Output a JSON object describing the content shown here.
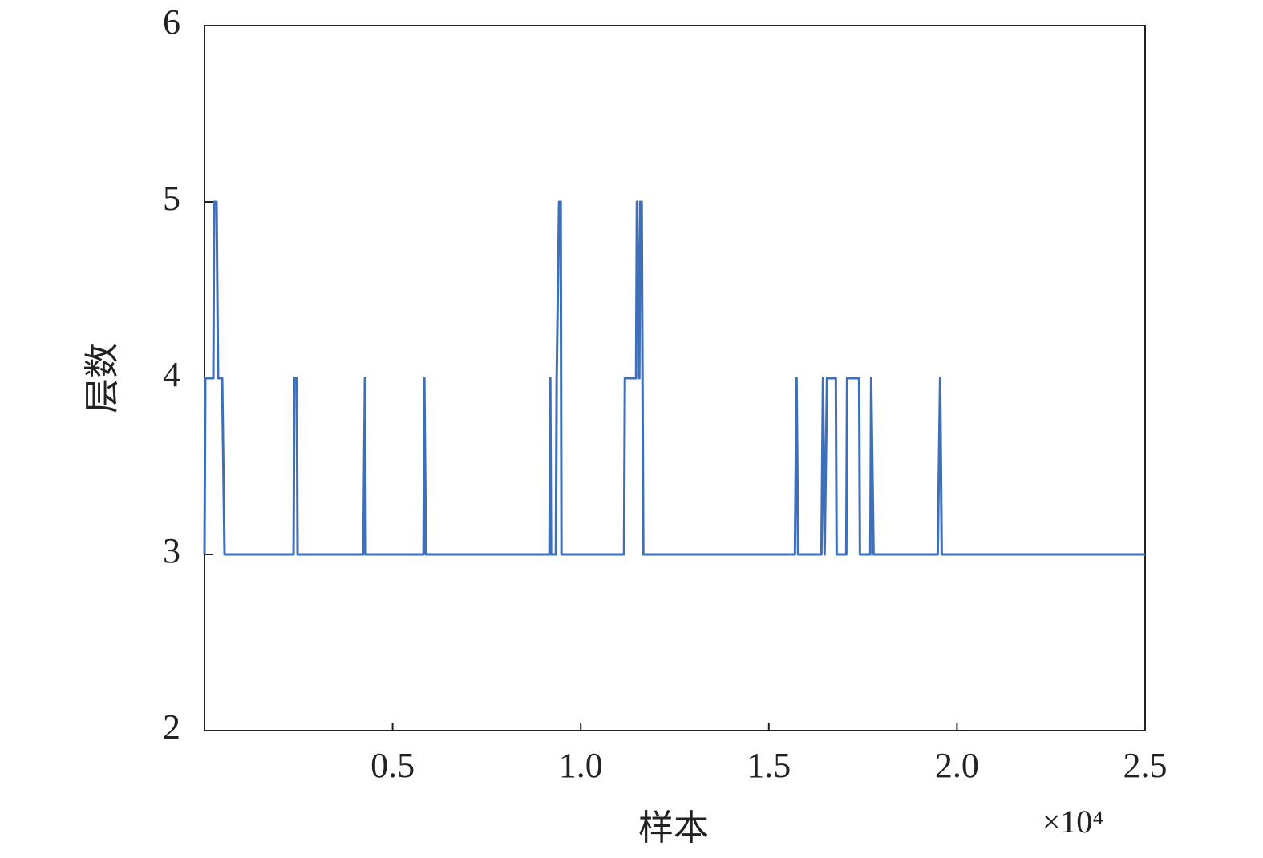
{
  "chart_data": {
    "type": "line",
    "x_label": "样本",
    "y_label": "层数",
    "x_multiplier": "×10⁴",
    "xlim": [
      0,
      2.5
    ],
    "xticks": [
      0.5,
      {
        "value": 1,
        "label": "1.0"
      },
      1.5,
      {
        "value": 2,
        "label": "2.0"
      },
      2.5
    ],
    "ylim": [
      2,
      6
    ],
    "yticks": [
      2,
      3,
      4,
      5,
      6
    ],
    "grid": false,
    "series": [
      {
        "color": "#3f6fb9",
        "x": [
          0,
          0.0021,
          0.0235,
          0.0256,
          0.032,
          0.0362,
          0.0469,
          0.0533,
          0.2367,
          0.2388,
          0.2452,
          0.2473,
          0.4222,
          0.4264,
          0.4285,
          0.5821,
          0.5842,
          0.5885,
          0.9168,
          0.919,
          0.9211,
          0.9339,
          0.936,
          0.9424,
          0.9467,
          0.9488,
          1.1151,
          1.1173,
          1.1471,
          1.1493,
          1.1557,
          1.1578,
          1.162,
          1.1663,
          1.5693,
          1.5736,
          1.5778,
          1.6397,
          1.6439,
          1.6482,
          1.6546,
          1.678,
          1.6802,
          1.7058,
          1.7079,
          1.7399,
          1.742,
          1.7697,
          1.7719,
          1.7783,
          1.9488,
          1.9552,
          1.9595,
          2.5
        ],
        "values": [
          3,
          4,
          4,
          5,
          5,
          4,
          4,
          3,
          3,
          4,
          4,
          3,
          3,
          4,
          3,
          3,
          4,
          3,
          3,
          4,
          3,
          3,
          4,
          5,
          5,
          3,
          3,
          4,
          4,
          5,
          4,
          5,
          5,
          3,
          3,
          4,
          3,
          3,
          4,
          3,
          4,
          4,
          3,
          3,
          4,
          4,
          3,
          3,
          4,
          3,
          3,
          4,
          3,
          3
        ]
      }
    ]
  }
}
